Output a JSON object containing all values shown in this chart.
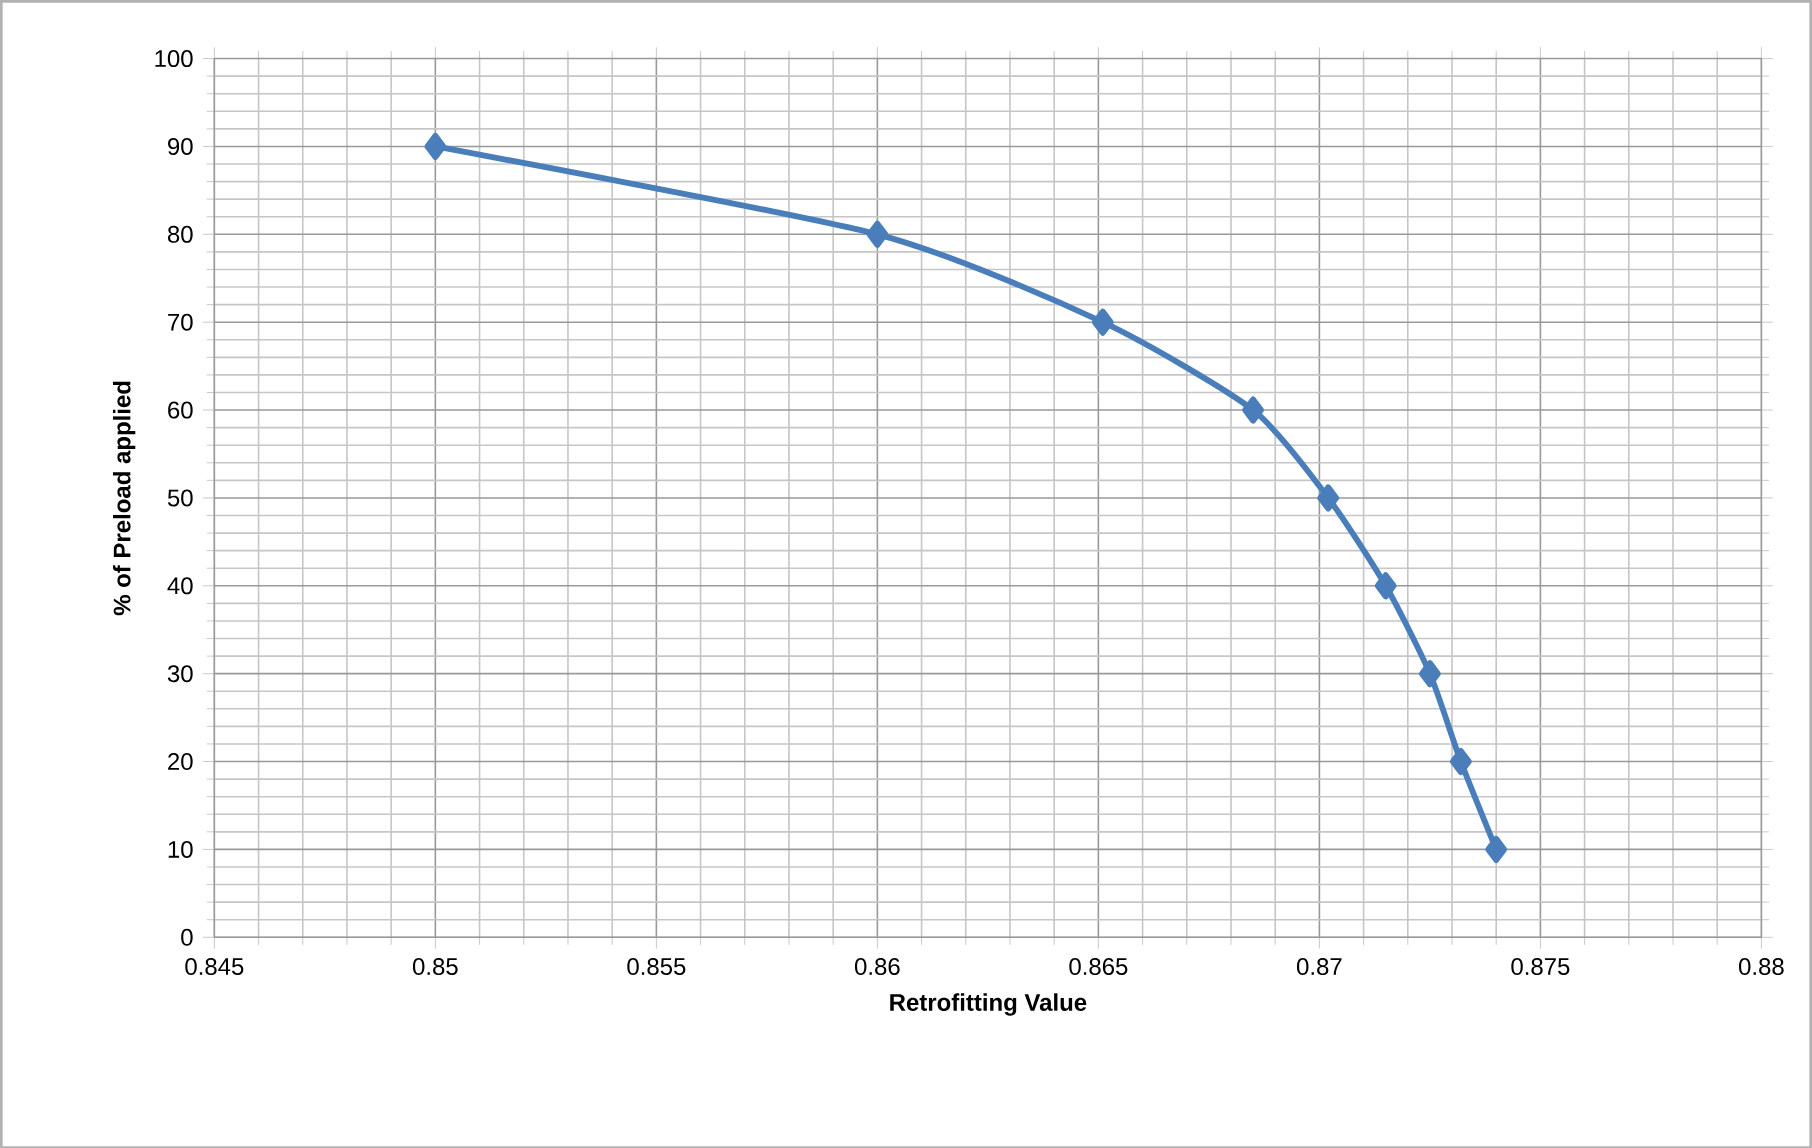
{
  "chart_data": {
    "type": "line",
    "xlabel": "Retrofitting Value",
    "ylabel": "% of Preload applied",
    "x": [
      0.85,
      0.86,
      0.8651,
      0.8685,
      0.8702,
      0.8715,
      0.8725,
      0.8732,
      0.874
    ],
    "series": [
      {
        "color": "#4a7ebb",
        "values": [
          90,
          80,
          70,
          60,
          50,
          40,
          30,
          20,
          10
        ]
      }
    ],
    "xlim": [
      0.845,
      0.88
    ],
    "xticks": [
      0.845,
      0.85,
      0.855,
      0.86,
      0.865,
      0.87,
      0.875,
      0.88
    ],
    "ylim": [
      0,
      100
    ],
    "yticks": [
      0,
      10,
      20,
      30,
      40,
      50,
      60,
      70,
      80,
      90,
      100
    ],
    "grid": true,
    "marker": "diamond",
    "line_style": "solid"
  }
}
